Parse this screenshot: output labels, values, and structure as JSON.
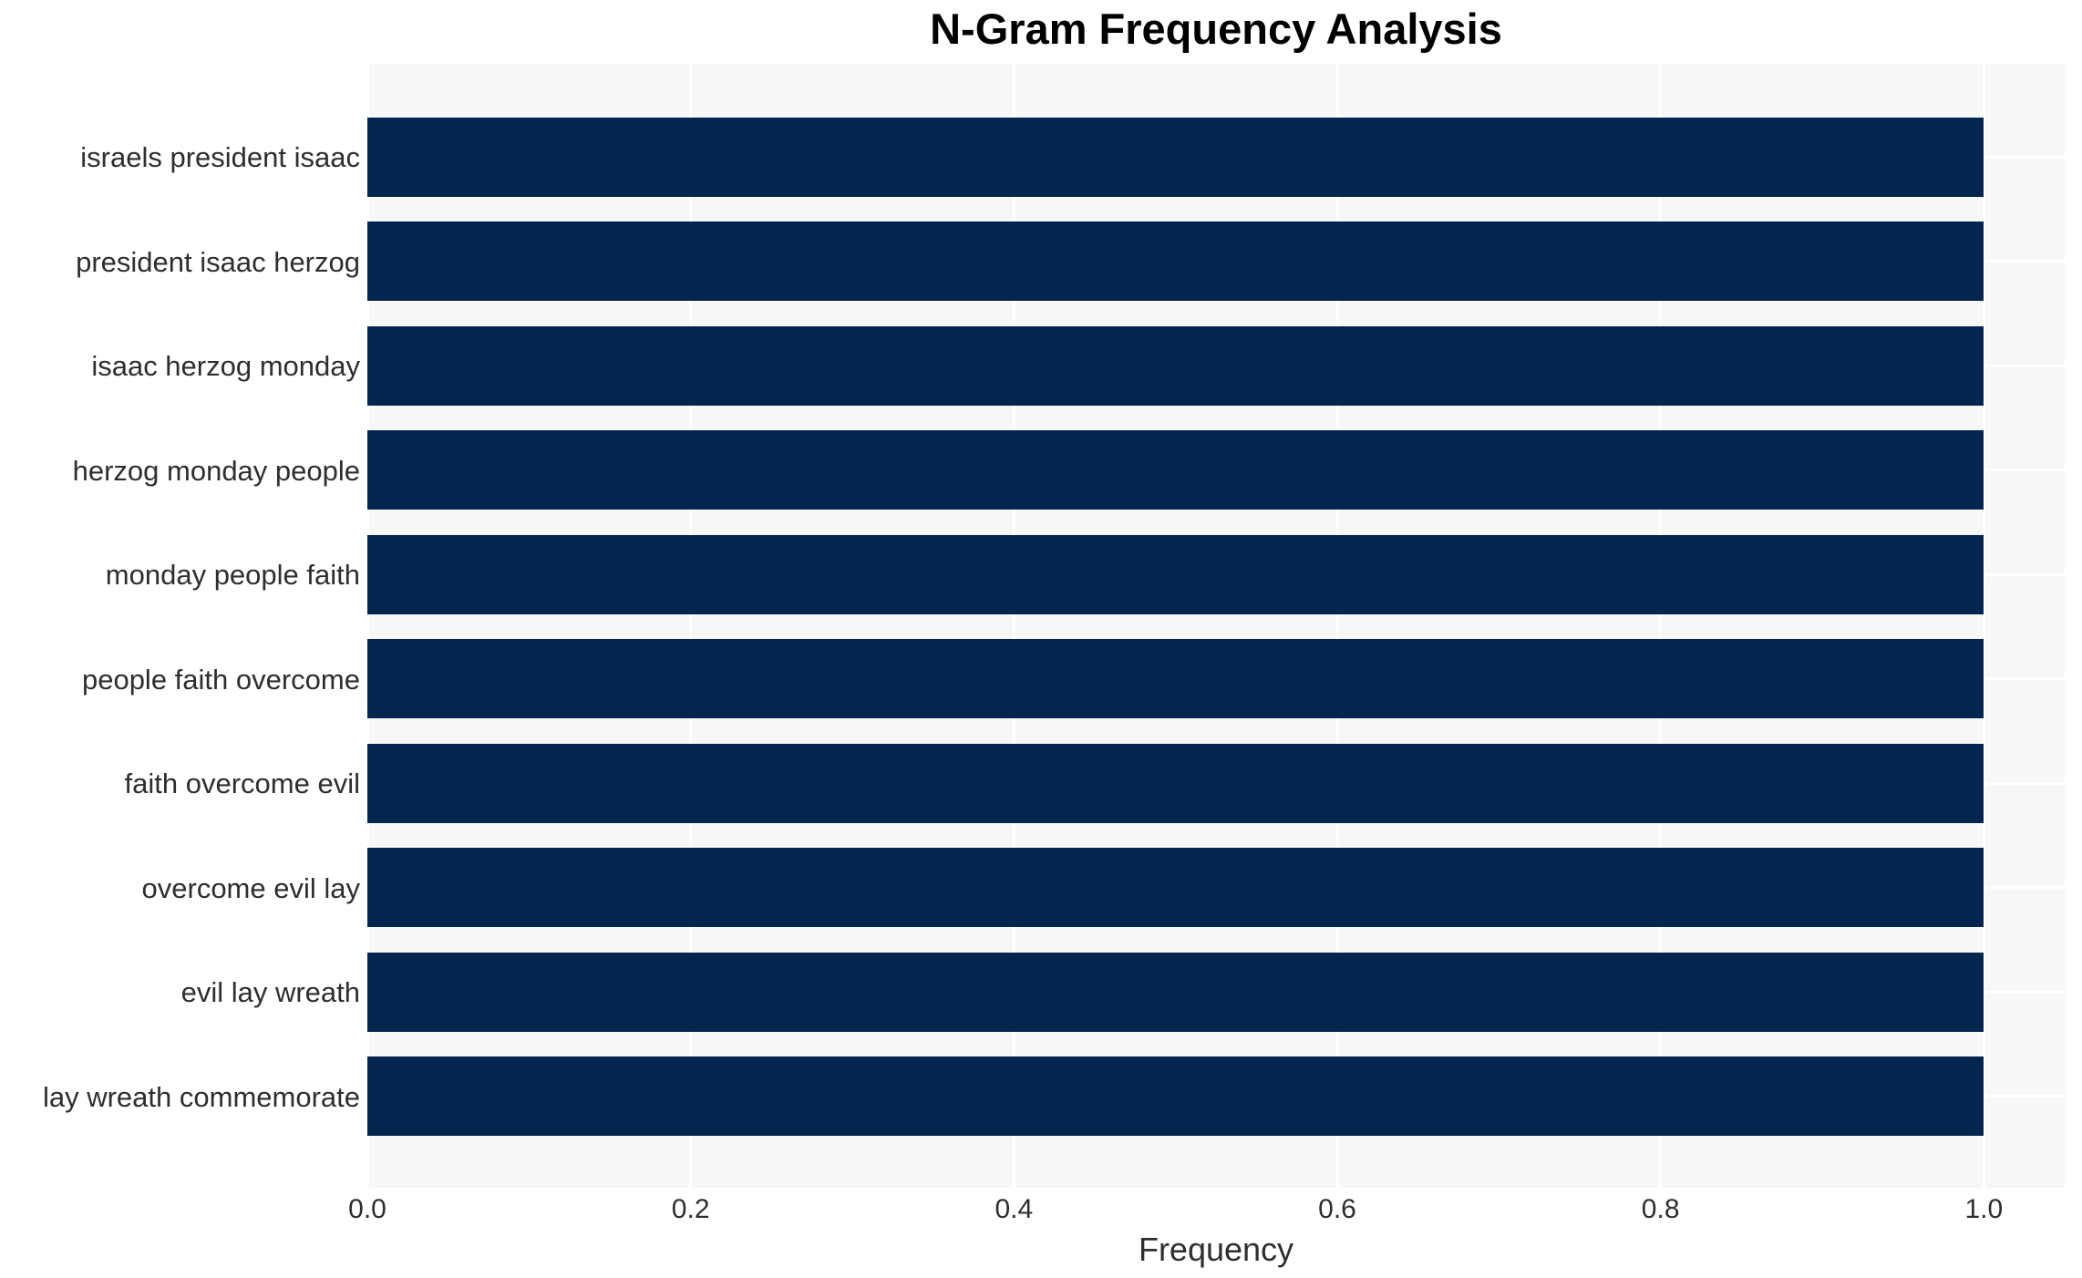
{
  "chart_data": {
    "type": "bar",
    "orientation": "horizontal",
    "title": "N-Gram Frequency Analysis",
    "xlabel": "Frequency",
    "ylabel": "",
    "categories": [
      "israels president isaac",
      "president isaac herzog",
      "isaac herzog monday",
      "herzog monday people",
      "monday people faith",
      "people faith overcome",
      "faith overcome evil",
      "overcome evil lay",
      "evil lay wreath",
      "lay wreath commemorate"
    ],
    "values": [
      1.0,
      1.0,
      1.0,
      1.0,
      1.0,
      1.0,
      1.0,
      1.0,
      1.0,
      1.0
    ],
    "xlim": [
      0.0,
      1.05
    ],
    "xticks": [
      {
        "value": 0.0,
        "label": "0.0"
      },
      {
        "value": 0.2,
        "label": "0.2"
      },
      {
        "value": 0.4,
        "label": "0.4"
      },
      {
        "value": 0.6,
        "label": "0.6"
      },
      {
        "value": 0.8,
        "label": "0.8"
      },
      {
        "value": 1.0,
        "label": "1.0"
      }
    ],
    "grid": true,
    "legend_position": "none",
    "colors": {
      "bar": "#03254e",
      "plot_background": "#f7f7f8",
      "grid_line": "#ffffff",
      "tick_text": "#2e2e2e",
      "title_text": "#000000"
    }
  }
}
